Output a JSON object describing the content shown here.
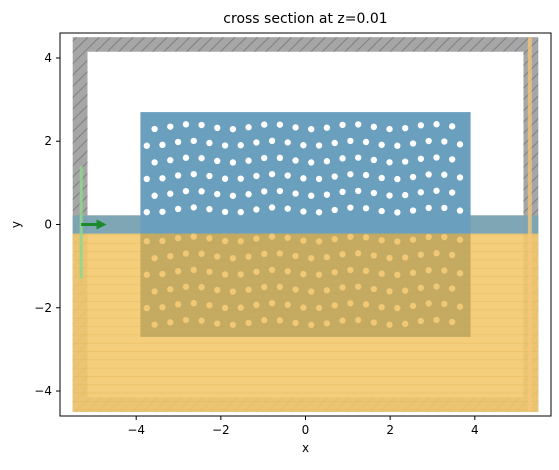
{
  "chart_data": {
    "type": "heatmap",
    "title": "cross section at z=0.01",
    "xlabel": "x",
    "ylabel": "y",
    "xlim": [
      -5.8,
      5.8
    ],
    "ylim": [
      -4.6,
      4.6
    ],
    "xticks": [
      -4,
      -2,
      0,
      2,
      4
    ],
    "yticks": [
      -4,
      -2,
      0,
      2,
      4
    ],
    "grid": false,
    "colors": {
      "pml": "#a6a6a6",
      "pml_hatch": "#7f7f7f",
      "slab": "#6a9fbe",
      "substrate": "#f3c96a",
      "substrate_line": "#e0a84b",
      "overlap": "#a89a58",
      "hole": "#ffffff",
      "hole_in_substrate": "#f0c878",
      "source": "#8fd88f",
      "monitor": "#f8c779",
      "arrow": "#1a8a2a"
    },
    "regions": {
      "simulation_domain": {
        "x": [
          -5.5,
          5.5
        ],
        "y": [
          -4.5,
          4.5
        ]
      },
      "pml_thickness": 0.35,
      "substrate": {
        "x": [
          -5.5,
          5.5
        ],
        "y": [
          -4.5,
          0.0
        ]
      },
      "slab": {
        "x": [
          -3.9,
          3.9
        ],
        "y": [
          -0.22,
          2.7
        ]
      },
      "photonic_crystal_lower": {
        "x": [
          -3.9,
          3.9
        ],
        "y": [
          -2.7,
          -0.22
        ]
      },
      "waveguide": {
        "x": [
          -5.5,
          5.5
        ],
        "y": [
          -0.22,
          0.22
        ]
      }
    },
    "source": {
      "x": -5.3,
      "y": [
        -1.3,
        1.4
      ]
    },
    "monitor": {
      "x": 5.3,
      "y": [
        -4.5,
        4.5
      ]
    },
    "mode_direction": {
      "x_start": -5.3,
      "x_end": -4.7,
      "y": 0.0
    },
    "holes_upper": {
      "rows_y": [
        0.35,
        0.75,
        1.15,
        1.55,
        1.95,
        2.35
      ],
      "x_start": -3.75,
      "x_end": 3.75,
      "pitch": 0.37,
      "radius": 0.075
    },
    "holes_lower": {
      "rows_y": [
        -0.35,
        -0.75,
        -1.15,
        -1.55,
        -1.95,
        -2.35
      ],
      "x_start": -3.75,
      "x_end": 3.75,
      "pitch": 0.37,
      "radius": 0.075
    }
  }
}
